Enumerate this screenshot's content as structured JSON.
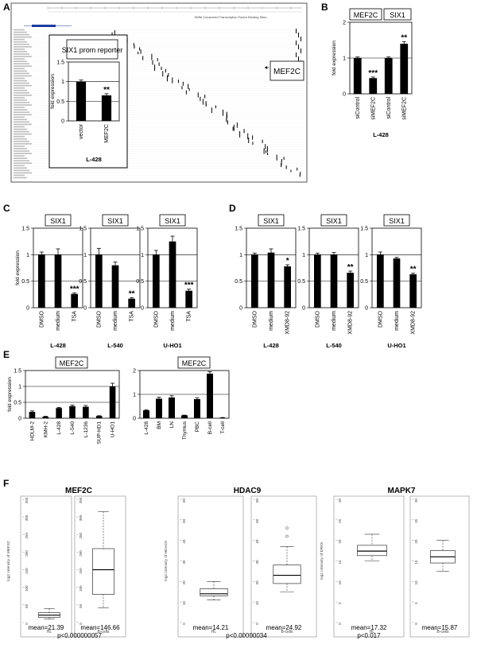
{
  "figure": {
    "panels": {
      "A": "A",
      "B": "B",
      "C": "C",
      "D": "D",
      "E": "E",
      "F": "F"
    }
  },
  "browser": {
    "track_label": "HMM Conserved Transcription Factor Binding Sites",
    "gene_label": "MEF2C"
  },
  "chart_data": [
    {
      "id": "A-inset",
      "type": "bar",
      "title": "SIX1 prom reporter",
      "ylabel": "fold expression",
      "ylim": [
        0,
        1.5
      ],
      "yticks": [
        "0",
        "0.5",
        "1",
        "1.5"
      ],
      "categories": [
        "vector",
        "MEF2C"
      ],
      "values": [
        1.0,
        0.65
      ],
      "errors": [
        0.04,
        0.04
      ],
      "stars": [
        "",
        "**"
      ],
      "cellline": "L-428"
    },
    {
      "id": "B",
      "type": "bar",
      "titles": [
        "MEF2C",
        "SIX1"
      ],
      "ylabel": "fold expression",
      "ylim": [
        0,
        2
      ],
      "yticks": [
        "0",
        "1",
        "2"
      ],
      "categories": [
        "siControl",
        "siMEF2C",
        "siControl",
        "siMEF2C"
      ],
      "values": [
        1.0,
        0.44,
        1.0,
        1.4
      ],
      "errors": [
        0.03,
        0.03,
        0.03,
        0.06
      ],
      "stars": [
        "",
        "***",
        "",
        "**"
      ],
      "cellline": "L-428"
    },
    {
      "id": "C",
      "type": "bar",
      "ylabel": "fold expression",
      "ylim": [
        0,
        1.5
      ],
      "yticks": [
        "0",
        "0.5",
        "1",
        "1.5"
      ],
      "subcharts": [
        {
          "title": "SIX1",
          "categories": [
            "DMSO",
            "medium",
            "TSA"
          ],
          "values": [
            1.0,
            1.0,
            0.26
          ],
          "errors": [
            0.05,
            0.11,
            0.02
          ],
          "stars": [
            "",
            "",
            "***"
          ],
          "cellline": "L-428"
        },
        {
          "title": "SIX1",
          "categories": [
            "DMSO",
            "medium",
            "TSA"
          ],
          "values": [
            1.0,
            0.8,
            0.17
          ],
          "errors": [
            0.12,
            0.06,
            0.02
          ],
          "stars": [
            "",
            "",
            "**"
          ],
          "cellline": "L-540"
        },
        {
          "title": "SIX1",
          "categories": [
            "DMSO",
            "medium",
            "TSA"
          ],
          "values": [
            1.0,
            1.25,
            0.32
          ],
          "errors": [
            0.08,
            0.1,
            0.03
          ],
          "stars": [
            "",
            "",
            "***"
          ],
          "cellline": "U-HO1"
        }
      ]
    },
    {
      "id": "D",
      "type": "bar",
      "ylabel": "",
      "ylim": [
        0,
        1.5
      ],
      "yticks": [
        "0",
        "0.5",
        "1",
        "1.5"
      ],
      "subcharts": [
        {
          "title": "SIX1",
          "categories": [
            "DMSO",
            "medium",
            "XMD8-92"
          ],
          "values": [
            1.0,
            1.04,
            0.78
          ],
          "errors": [
            0.03,
            0.07,
            0.03
          ],
          "stars": [
            "",
            "",
            "*"
          ],
          "cellline": "L-428"
        },
        {
          "title": "SIX1",
          "categories": [
            "DMSO",
            "medium",
            "XMD8-92"
          ],
          "values": [
            1.0,
            1.0,
            0.66
          ],
          "errors": [
            0.03,
            0.04,
            0.03
          ],
          "stars": [
            "",
            "",
            "**"
          ],
          "cellline": "L-540"
        },
        {
          "title": "SIX1",
          "categories": [
            "DMSO",
            "medium",
            "XMD8-92"
          ],
          "values": [
            1.0,
            0.93,
            0.63
          ],
          "errors": [
            0.05,
            0.02,
            0.02
          ],
          "stars": [
            "",
            "",
            "**"
          ],
          "cellline": "U-HO1"
        }
      ]
    },
    {
      "id": "E-left",
      "type": "bar",
      "title": "MEF2C",
      "ylabel": "fold expression",
      "ylim": [
        0,
        1.5
      ],
      "yticks": [
        "0",
        "0.5",
        "1",
        "1.5"
      ],
      "categories": [
        "HDLM-2",
        "KMH-2",
        "L-428",
        "L-540",
        "L-1236",
        "SUP-HD1",
        "U-HO1"
      ],
      "values": [
        0.2,
        0.05,
        0.32,
        0.38,
        0.36,
        0.07,
        1.0
      ],
      "errors": [
        0.03,
        0.01,
        0.02,
        0.03,
        0.04,
        0.01,
        0.1
      ]
    },
    {
      "id": "E-right",
      "type": "bar",
      "title": "MEF2C",
      "ylabel": "",
      "ylim": [
        0,
        2
      ],
      "yticks": [
        "0",
        "1",
        "2"
      ],
      "categories": [
        "L-428",
        "BM",
        "LN",
        "Thymus",
        "PBC",
        "B-cell",
        "T-cell"
      ],
      "values": [
        0.33,
        0.82,
        0.87,
        0.12,
        0.8,
        1.87,
        0.02
      ],
      "errors": [
        0.02,
        0.06,
        0.07,
        0.01,
        0.06,
        0.08,
        0.01
      ]
    },
    {
      "id": "F",
      "type": "box",
      "groups": [
        {
          "title": "MEF2C",
          "ylabel": "log2 intensity of MEF2C",
          "ylim": [
            0,
            350
          ],
          "yticks": [
            "0",
            "50",
            "100",
            "150",
            "200",
            "250",
            "300",
            "350"
          ],
          "pvalue": "p<0.000000057",
          "boxes": [
            {
              "label": "HL",
              "min": 10,
              "q1": 15,
              "median": 21,
              "q3": 28,
              "max": 40,
              "outliers": [],
              "mean": "mean=21.39"
            },
            {
              "label": "B-cells",
              "min": 42,
              "q1": 80,
              "median": 150,
              "q3": 210,
              "max": 315,
              "outliers": [],
              "mean": "mean=146.66"
            }
          ]
        },
        {
          "title": "HDAC9",
          "ylabel": "log2 intensity of HDAC9",
          "ylim": [
            0,
            60
          ],
          "yticks": [
            "0",
            "10",
            "20",
            "30",
            "40",
            "50",
            "60"
          ],
          "pvalue": "p<0.00000034",
          "boxes": [
            {
              "label": "HL",
              "min": 11,
              "q1": 13,
              "median": 14,
              "q3": 16.5,
              "max": 20,
              "outliers": [],
              "mean": "mean=14.21"
            },
            {
              "label": "B-cells",
              "min": 15,
              "q1": 19,
              "median": 23,
              "q3": 28,
              "max": 37,
              "outliers": [
                42,
                46
              ],
              "mean": "mean=24.92"
            }
          ]
        },
        {
          "title": "MAPK7",
          "ylabel": "log2 intensity of ERK5",
          "ylim": [
            0,
            30
          ],
          "yticks": [
            "0",
            "5",
            "10",
            "15",
            "20",
            "25",
            "30"
          ],
          "pvalue": "p<0.017",
          "boxes": [
            {
              "label": "HL",
              "min": 15,
              "q1": 16.3,
              "median": 17.4,
              "q3": 18.8,
              "max": 21.5,
              "outliers": [],
              "mean": "mean=17.32"
            },
            {
              "label": "B-cells",
              "min": 12.5,
              "q1": 14.5,
              "median": 16,
              "q3": 17.5,
              "max": 20,
              "outliers": [],
              "mean": "mean=15.87"
            }
          ]
        }
      ]
    }
  ]
}
